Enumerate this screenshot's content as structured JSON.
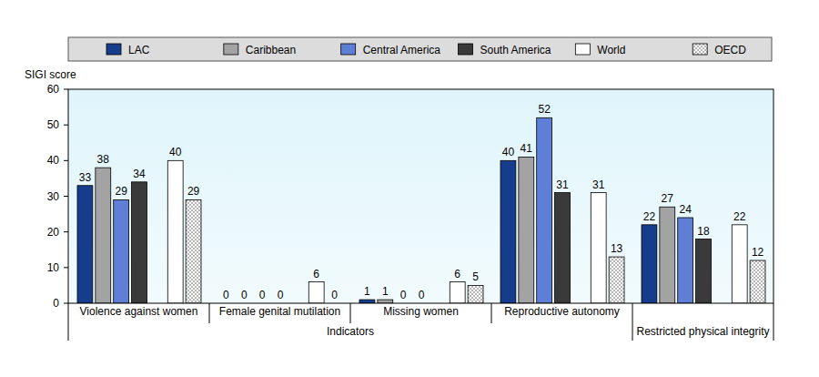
{
  "chart_data": {
    "type": "bar",
    "ylabel": "SIGI score",
    "xlabel": "Indicators",
    "categories": [
      "Violence against women",
      "Female genital mutilation",
      "Missing women",
      "Reproductive autonomy",
      "Restricted physical integrity"
    ],
    "series": [
      {
        "name": "LAC",
        "color": "#163c8c",
        "values": [
          33,
          0,
          1,
          40,
          22
        ]
      },
      {
        "name": "Caribbean",
        "color": "#a3a3a3",
        "values": [
          38,
          0,
          1,
          41,
          27
        ]
      },
      {
        "name": "Central America",
        "color": "#5f7fd6",
        "values": [
          29,
          0,
          0,
          52,
          24
        ]
      },
      {
        "name": "South America",
        "color": "#3a3a3a",
        "values": [
          34,
          0,
          0,
          31,
          18
        ]
      },
      {
        "name": "World",
        "color": "#ffffff",
        "values": [
          40,
          6,
          6,
          31,
          22
        ]
      },
      {
        "name": "OECD",
        "color": "#ffffff",
        "marker": "dots",
        "values": [
          29,
          0,
          5,
          13,
          12
        ]
      }
    ],
    "ylim": [
      0,
      60
    ],
    "yticks": [
      0,
      10,
      20,
      30,
      40,
      50,
      60
    ],
    "grid": false,
    "legend": "top",
    "data_labels": true
  }
}
